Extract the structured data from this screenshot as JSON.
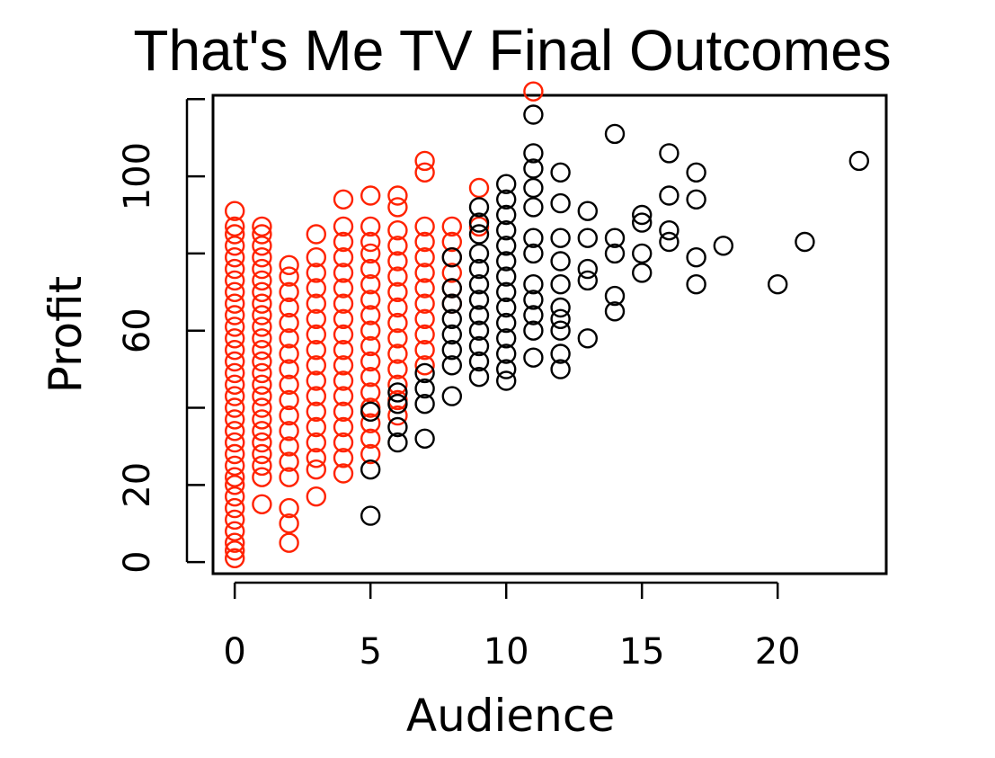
{
  "chart_data": {
    "type": "scatter",
    "title": "That's Me TV Final Outcomes",
    "xlabel": "Audience",
    "ylabel": "Profit",
    "xlim": [
      -0.8,
      24
    ],
    "ylim": [
      -3,
      121
    ],
    "x_ticks": [
      0,
      5,
      10,
      15,
      20
    ],
    "x_tick_labels": [
      "0",
      "5",
      "10",
      "15",
      "20"
    ],
    "y_ticks": [
      0,
      20,
      40,
      60,
      80,
      100,
      120
    ],
    "y_tick_labels": [
      "0",
      "20",
      "",
      "60",
      "",
      "100",
      ""
    ],
    "marker": "open-circle",
    "grid": false,
    "legend": "none",
    "series": [
      {
        "color": "#ff2200",
        "points": [
          [
            0,
            1
          ],
          [
            0,
            3
          ],
          [
            0,
            5
          ],
          [
            0,
            8
          ],
          [
            0,
            11
          ],
          [
            0,
            14
          ],
          [
            0,
            17
          ],
          [
            0,
            20
          ],
          [
            0,
            22
          ],
          [
            0,
            25
          ],
          [
            0,
            28
          ],
          [
            0,
            31
          ],
          [
            0,
            34
          ],
          [
            0,
            37
          ],
          [
            0,
            40
          ],
          [
            0,
            43
          ],
          [
            0,
            46
          ],
          [
            0,
            49
          ],
          [
            0,
            52
          ],
          [
            0,
            55
          ],
          [
            0,
            58
          ],
          [
            0,
            61
          ],
          [
            0,
            64
          ],
          [
            0,
            67
          ],
          [
            0,
            70
          ],
          [
            0,
            73
          ],
          [
            0,
            76
          ],
          [
            0,
            79
          ],
          [
            0,
            82
          ],
          [
            0,
            85
          ],
          [
            0,
            87
          ],
          [
            0,
            91
          ],
          [
            1,
            15
          ],
          [
            1,
            22
          ],
          [
            1,
            25
          ],
          [
            1,
            28
          ],
          [
            1,
            31
          ],
          [
            1,
            34
          ],
          [
            1,
            37
          ],
          [
            1,
            40
          ],
          [
            1,
            43
          ],
          [
            1,
            46
          ],
          [
            1,
            49
          ],
          [
            1,
            52
          ],
          [
            1,
            55
          ],
          [
            1,
            58
          ],
          [
            1,
            61
          ],
          [
            1,
            64
          ],
          [
            1,
            67
          ],
          [
            1,
            70
          ],
          [
            1,
            73
          ],
          [
            1,
            76
          ],
          [
            1,
            79
          ],
          [
            1,
            82
          ],
          [
            1,
            85
          ],
          [
            1,
            87
          ],
          [
            2,
            5
          ],
          [
            2,
            10
          ],
          [
            2,
            14
          ],
          [
            2,
            22
          ],
          [
            2,
            26
          ],
          [
            2,
            30
          ],
          [
            2,
            34
          ],
          [
            2,
            38
          ],
          [
            2,
            42
          ],
          [
            2,
            46
          ],
          [
            2,
            50
          ],
          [
            2,
            54
          ],
          [
            2,
            58
          ],
          [
            2,
            62
          ],
          [
            2,
            66
          ],
          [
            2,
            70
          ],
          [
            2,
            74
          ],
          [
            2,
            77
          ],
          [
            3,
            17
          ],
          [
            3,
            24
          ],
          [
            3,
            27
          ],
          [
            3,
            31
          ],
          [
            3,
            35
          ],
          [
            3,
            39
          ],
          [
            3,
            43
          ],
          [
            3,
            47
          ],
          [
            3,
            51
          ],
          [
            3,
            55
          ],
          [
            3,
            59
          ],
          [
            3,
            63
          ],
          [
            3,
            67
          ],
          [
            3,
            71
          ],
          [
            3,
            75
          ],
          [
            3,
            79
          ],
          [
            3,
            85
          ],
          [
            4,
            23
          ],
          [
            4,
            27
          ],
          [
            4,
            31
          ],
          [
            4,
            35
          ],
          [
            4,
            39
          ],
          [
            4,
            43
          ],
          [
            4,
            47
          ],
          [
            4,
            51
          ],
          [
            4,
            55
          ],
          [
            4,
            59
          ],
          [
            4,
            63
          ],
          [
            4,
            67
          ],
          [
            4,
            71
          ],
          [
            4,
            75
          ],
          [
            4,
            79
          ],
          [
            4,
            83
          ],
          [
            4,
            87
          ],
          [
            4,
            94
          ],
          [
            5,
            28
          ],
          [
            5,
            32
          ],
          [
            5,
            36
          ],
          [
            5,
            40
          ],
          [
            5,
            44
          ],
          [
            5,
            48
          ],
          [
            5,
            52
          ],
          [
            5,
            56
          ],
          [
            5,
            60
          ],
          [
            5,
            64
          ],
          [
            5,
            68
          ],
          [
            5,
            72
          ],
          [
            5,
            76
          ],
          [
            5,
            80
          ],
          [
            5,
            83
          ],
          [
            5,
            87
          ],
          [
            5,
            95
          ],
          [
            6,
            38
          ],
          [
            6,
            42
          ],
          [
            6,
            46
          ],
          [
            6,
            50
          ],
          [
            6,
            54
          ],
          [
            6,
            58
          ],
          [
            6,
            62
          ],
          [
            6,
            66
          ],
          [
            6,
            70
          ],
          [
            6,
            74
          ],
          [
            6,
            78
          ],
          [
            6,
            82
          ],
          [
            6,
            86
          ],
          [
            6,
            92
          ],
          [
            6,
            95
          ],
          [
            7,
            51
          ],
          [
            7,
            55
          ],
          [
            7,
            59
          ],
          [
            7,
            63
          ],
          [
            7,
            67
          ],
          [
            7,
            71
          ],
          [
            7,
            75
          ],
          [
            7,
            79
          ],
          [
            7,
            83
          ],
          [
            7,
            87
          ],
          [
            7,
            101
          ],
          [
            7,
            104
          ],
          [
            8,
            67
          ],
          [
            8,
            71
          ],
          [
            8,
            75
          ],
          [
            8,
            79
          ],
          [
            8,
            83
          ],
          [
            8,
            87
          ],
          [
            9,
            87
          ],
          [
            9,
            97
          ],
          [
            11,
            122
          ]
        ]
      },
      {
        "color": "#000000",
        "points": [
          [
            5,
            12
          ],
          [
            5,
            24
          ],
          [
            5,
            39
          ],
          [
            6,
            31
          ],
          [
            6,
            35
          ],
          [
            6,
            41
          ],
          [
            6,
            44
          ],
          [
            7,
            32
          ],
          [
            7,
            41
          ],
          [
            7,
            45
          ],
          [
            7,
            49
          ],
          [
            8,
            43
          ],
          [
            8,
            51
          ],
          [
            8,
            55
          ],
          [
            8,
            59
          ],
          [
            8,
            63
          ],
          [
            8,
            67
          ],
          [
            8,
            71
          ],
          [
            8,
            79
          ],
          [
            9,
            48
          ],
          [
            9,
            52
          ],
          [
            9,
            56
          ],
          [
            9,
            60
          ],
          [
            9,
            64
          ],
          [
            9,
            68
          ],
          [
            9,
            72
          ],
          [
            9,
            76
          ],
          [
            9,
            80
          ],
          [
            9,
            85
          ],
          [
            9,
            88
          ],
          [
            9,
            92
          ],
          [
            10,
            47
          ],
          [
            10,
            50
          ],
          [
            10,
            54
          ],
          [
            10,
            58
          ],
          [
            10,
            62
          ],
          [
            10,
            66
          ],
          [
            10,
            70
          ],
          [
            10,
            74
          ],
          [
            10,
            78
          ],
          [
            10,
            82
          ],
          [
            10,
            86
          ],
          [
            10,
            90
          ],
          [
            10,
            94
          ],
          [
            10,
            98
          ],
          [
            11,
            53
          ],
          [
            11,
            60
          ],
          [
            11,
            64
          ],
          [
            11,
            68
          ],
          [
            11,
            72
          ],
          [
            11,
            80
          ],
          [
            11,
            84
          ],
          [
            11,
            92
          ],
          [
            11,
            97
          ],
          [
            11,
            102
          ],
          [
            11,
            106
          ],
          [
            11,
            116
          ],
          [
            12,
            50
          ],
          [
            12,
            54
          ],
          [
            12,
            60
          ],
          [
            12,
            63
          ],
          [
            12,
            66
          ],
          [
            12,
            72
          ],
          [
            12,
            78
          ],
          [
            12,
            84
          ],
          [
            12,
            93
          ],
          [
            12,
            101
          ],
          [
            13,
            58
          ],
          [
            13,
            73
          ],
          [
            13,
            76
          ],
          [
            13,
            84
          ],
          [
            13,
            91
          ],
          [
            14,
            65
          ],
          [
            14,
            69
          ],
          [
            14,
            80
          ],
          [
            14,
            84
          ],
          [
            14,
            111
          ],
          [
            15,
            75
          ],
          [
            15,
            80
          ],
          [
            15,
            88
          ],
          [
            15,
            90
          ],
          [
            16,
            83
          ],
          [
            16,
            86
          ],
          [
            16,
            95
          ],
          [
            16,
            106
          ],
          [
            17,
            72
          ],
          [
            17,
            79
          ],
          [
            17,
            94
          ],
          [
            17,
            101
          ],
          [
            18,
            82
          ],
          [
            20,
            72
          ],
          [
            21,
            83
          ],
          [
            23,
            104
          ]
        ]
      }
    ]
  }
}
